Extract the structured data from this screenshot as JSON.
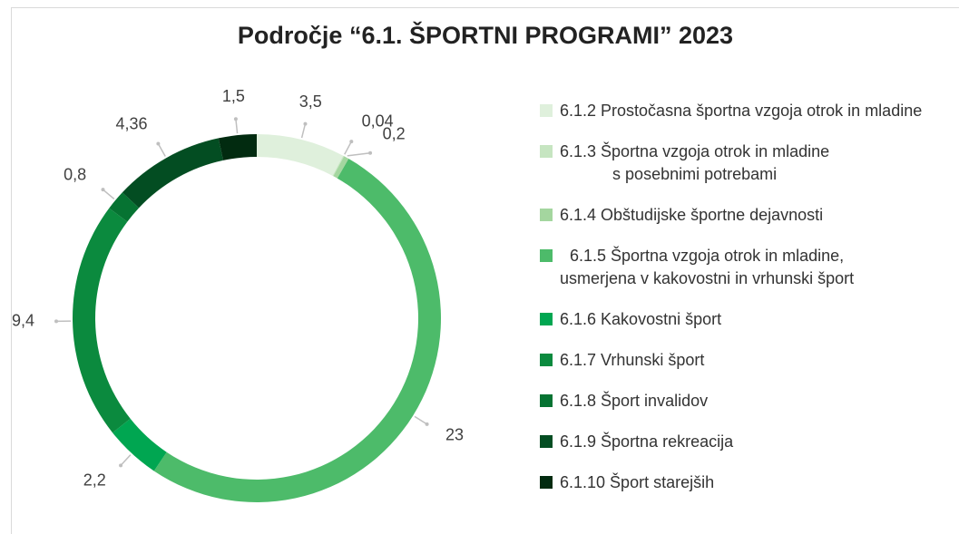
{
  "chart_data": {
    "type": "donut",
    "title": "Področje “6.1. ŠPORTNI PROGRAMI” 2023",
    "categories": [
      "6.1.2 Prostočasna športna vzgoja otrok in mladine",
      "6.1.3 Športna vzgoja otrok in mladine\ns posebnimi potrebami",
      "6.1.4 Obštudijske športne dejavnosti",
      "6.1.5 Športna vzgoja otrok in mladine,\nusmerjena v kakovostni in vrhunski šport",
      "6.1.6 Kakovostni šport",
      "6.1.7 Vrhunski šport",
      "6.1.8 Šport invalidov",
      "6.1.9 Športna rekreacija",
      "6.1.10 Šport starejših"
    ],
    "values": [
      3.5,
      0.04,
      0.2,
      23,
      2.2,
      9.4,
      0.8,
      4.36,
      1.5
    ],
    "value_labels": [
      "3,5",
      "0,04",
      "0,2",
      "23",
      "2,2",
      "9,4",
      "0,8",
      "4,36",
      "1,5"
    ],
    "colors": [
      "#dff0dc",
      "#c6e5c1",
      "#a4d69f",
      "#4dbb6a",
      "#00a651",
      "#0b8a3e",
      "#067332",
      "#034d22",
      "#022b10"
    ],
    "legend": "right"
  }
}
